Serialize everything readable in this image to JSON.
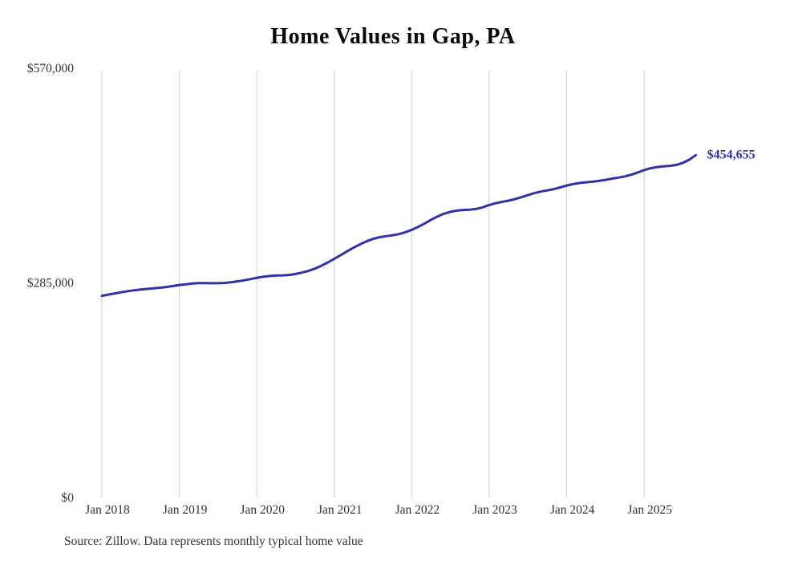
{
  "page": {
    "background": "#ffffff"
  },
  "chart_data": {
    "type": "line",
    "title": "Home Values in Gap, PA",
    "source_note": "Source: Zillow. Data represents monthly typical home value",
    "line_color": "#3232a8",
    "grid_color": "#cccccc",
    "tick_text_color": "#333333",
    "end_label": "$454,655",
    "end_value": 454655,
    "ylim": [
      0,
      570000
    ],
    "start_month": "Jan 2018",
    "end_month": "Sep 2025",
    "y_ticks": [
      {
        "label": "$0",
        "value": 0
      },
      {
        "label": "$285,000",
        "value": 285000
      },
      {
        "label": "$570,000",
        "value": 570000
      }
    ],
    "x_ticks": [
      {
        "label": "Jan 2018",
        "month_index": 0
      },
      {
        "label": "Jan 2019",
        "month_index": 12
      },
      {
        "label": "Jan 2020",
        "month_index": 24
      },
      {
        "label": "Jan 2021",
        "month_index": 36
      },
      {
        "label": "Jan 2022",
        "month_index": 48
      },
      {
        "label": "Jan 2023",
        "month_index": 60
      },
      {
        "label": "Jan 2024",
        "month_index": 72
      },
      {
        "label": "Jan 2025",
        "month_index": 84
      }
    ],
    "series": [
      {
        "name": "Monthly typical home value",
        "values": [
          268000,
          269400,
          271000,
          272600,
          274000,
          275200,
          276200,
          277000,
          277800,
          278600,
          279600,
          280800,
          282200,
          283200,
          284200,
          284800,
          284800,
          284600,
          284600,
          285000,
          285800,
          287000,
          288400,
          290000,
          291800,
          293200,
          294200,
          294800,
          295000,
          295600,
          296800,
          298600,
          301000,
          304000,
          307800,
          312200,
          317000,
          322000,
          327000,
          331800,
          336200,
          340200,
          343400,
          345600,
          347000,
          348200,
          349800,
          352200,
          355400,
          359400,
          364000,
          368800,
          373200,
          376800,
          379400,
          381000,
          381800,
          382200,
          383200,
          385400,
          388400,
          390800,
          392600,
          394200,
          396200,
          398800,
          401600,
          404200,
          406200,
          407800,
          409600,
          411800,
          414200,
          416200,
          417600,
          418600,
          419400,
          420400,
          421800,
          423400,
          424800,
          426400,
          428600,
          431600,
          434800,
          437200,
          438800,
          439800,
          440400,
          441600,
          444400,
          448600,
          454655
        ]
      }
    ]
  }
}
